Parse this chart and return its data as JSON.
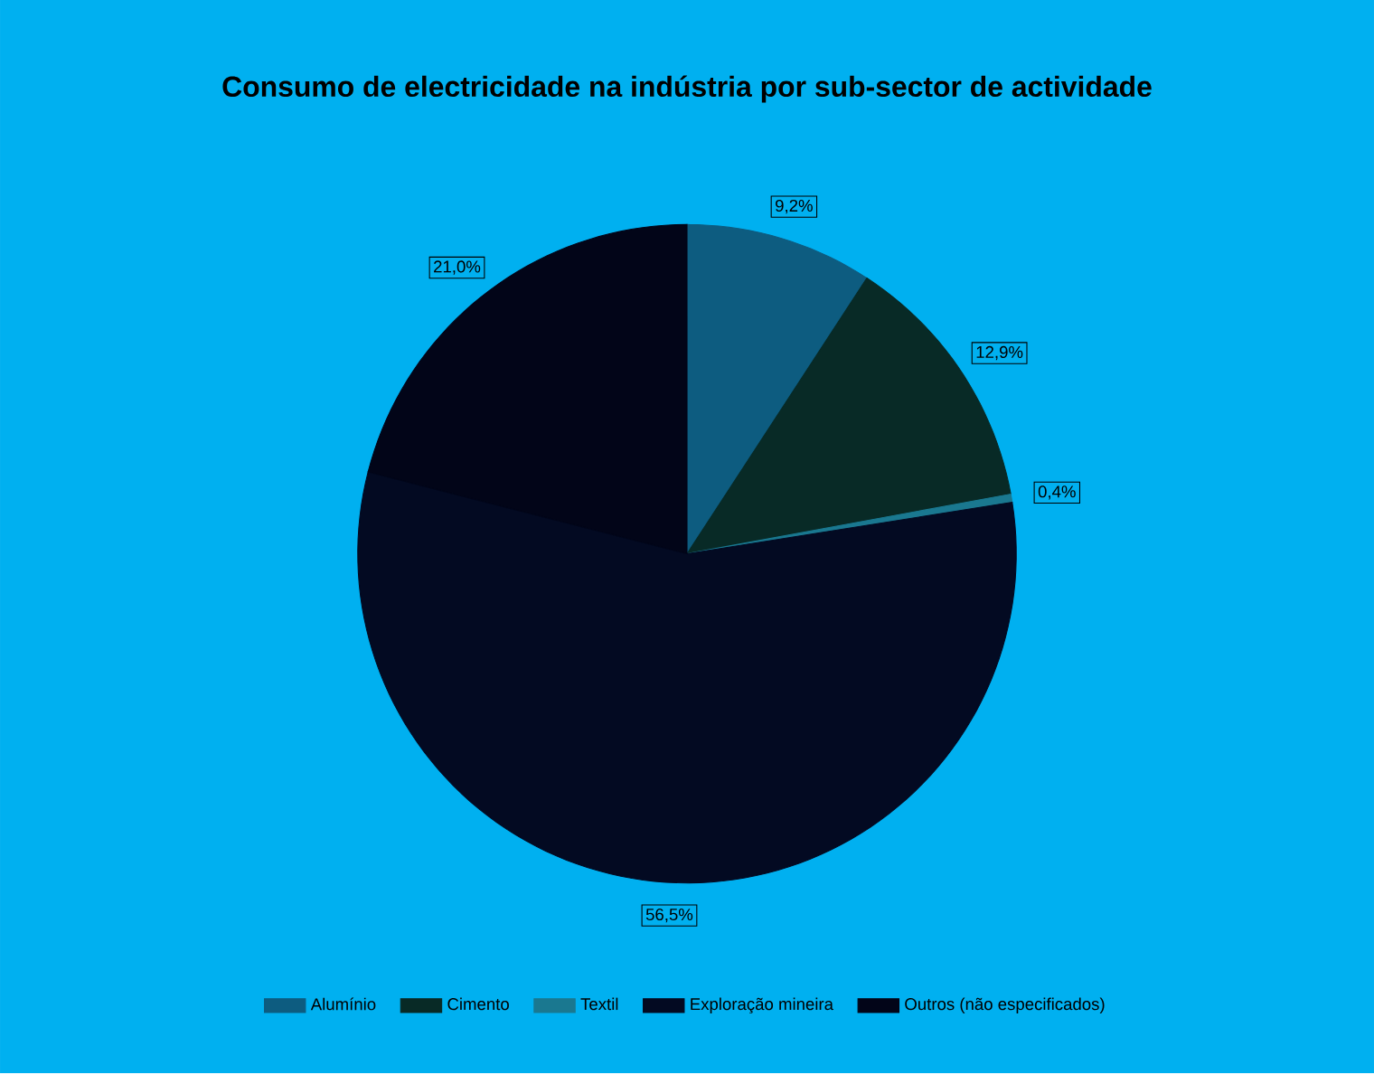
{
  "chart_data": {
    "type": "pie",
    "title": "Consumo de electricidade na indústria por sub-sector de actividade",
    "categories": [
      "Alumínio",
      "Cimento",
      "Textil",
      "Exploração mineira",
      "Outros (não especificados)"
    ],
    "values": [
      9.2,
      12.9,
      0.4,
      56.5,
      21.0
    ],
    "value_labels": [
      "9,2%",
      "12,9%",
      "0,4%",
      "56,5%",
      "21,0%"
    ],
    "colors": [
      "#0d5c80",
      "#082a26",
      "#1a7890",
      "#030a22",
      "#020518"
    ],
    "legend": "bottom"
  }
}
